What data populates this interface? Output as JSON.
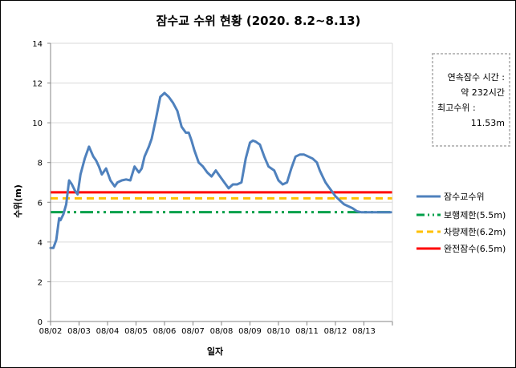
{
  "chart_data": {
    "type": "line",
    "title": "잠수교 수위 현황 (2020. 8.2~8.13)",
    "xlabel": "일자",
    "ylabel": "수위(m)",
    "ylim": [
      0,
      14
    ],
    "yticks": [
      0,
      2,
      4,
      6,
      8,
      10,
      12,
      14
    ],
    "xlim": [
      0,
      12
    ],
    "x_tick_labels": [
      "08/02",
      "08/03",
      "08/04",
      "08/05",
      "08/06",
      "08/07",
      "08/08",
      "08/09",
      "08/10",
      "08/11",
      "08/12",
      "08/13"
    ],
    "grid": "horizontal",
    "legend_position": "right",
    "series": [
      {
        "name": "잠수교수위",
        "color": "#4F81BD",
        "style": "solid",
        "x": [
          0,
          0.1,
          0.2,
          0.3,
          0.35,
          0.45,
          0.55,
          0.65,
          0.75,
          0.85,
          0.95,
          1.05,
          1.2,
          1.35,
          1.5,
          1.6,
          1.7,
          1.8,
          1.95,
          2.1,
          2.25,
          2.35,
          2.5,
          2.65,
          2.8,
          2.95,
          3.1,
          3.2,
          3.3,
          3.45,
          3.55,
          3.7,
          3.85,
          4.0,
          4.15,
          4.3,
          4.45,
          4.6,
          4.75,
          4.85,
          4.95,
          5.05,
          5.2,
          5.35,
          5.5,
          5.65,
          5.8,
          5.95,
          6.1,
          6.25,
          6.4,
          6.55,
          6.7,
          6.85,
          7.0,
          7.1,
          7.2,
          7.35,
          7.5,
          7.65,
          7.75,
          7.85,
          8.0,
          8.15,
          8.3,
          8.45,
          8.6,
          8.75,
          8.9,
          9.05,
          9.2,
          9.35,
          9.45,
          9.55,
          9.65,
          9.75,
          9.85,
          10.0,
          10.15,
          10.3,
          10.45,
          10.6,
          10.75,
          10.9,
          11.05,
          11.2,
          11.35,
          11.5,
          11.65,
          11.8,
          11.95
        ],
        "values": [
          3.7,
          3.7,
          4.1,
          5.2,
          5.1,
          5.4,
          5.9,
          7.1,
          6.9,
          6.6,
          6.4,
          7.4,
          8.2,
          8.8,
          8.3,
          8.1,
          7.8,
          7.4,
          7.7,
          7.1,
          6.8,
          7.0,
          7.1,
          7.15,
          7.1,
          7.8,
          7.5,
          7.7,
          8.3,
          8.8,
          9.2,
          10.2,
          11.3,
          11.5,
          11.3,
          11.0,
          10.6,
          9.8,
          9.5,
          9.5,
          9.1,
          8.6,
          8.0,
          7.8,
          7.5,
          7.3,
          7.6,
          7.3,
          7.0,
          6.7,
          6.9,
          6.9,
          7.0,
          8.2,
          9.0,
          9.1,
          9.05,
          8.9,
          8.3,
          7.8,
          7.7,
          7.6,
          7.1,
          6.9,
          7.0,
          7.7,
          8.3,
          8.4,
          8.4,
          8.3,
          8.2,
          8.0,
          7.6,
          7.3,
          7.0,
          6.8,
          6.6,
          6.3,
          6.1,
          5.9,
          5.8,
          5.7,
          5.55,
          5.5,
          5.5,
          5.5,
          5.5,
          5.5,
          5.5,
          5.5,
          5.5
        ]
      },
      {
        "name": "보행제한(5.5m)",
        "color": "#00A04A",
        "style": "dash-dot-dot",
        "value": 5.5
      },
      {
        "name": "차량제한(6.2m)",
        "color": "#FFC000",
        "style": "dashed",
        "value": 6.2
      },
      {
        "name": "완전잠수(6.5m)",
        "color": "#FF0000",
        "style": "solid",
        "value": 6.5
      }
    ]
  },
  "info_box": {
    "line1": "연속잠수 시간 :",
    "line2": "약  232시간",
    "line3": "최고수위 :",
    "line4": "11.53m"
  }
}
